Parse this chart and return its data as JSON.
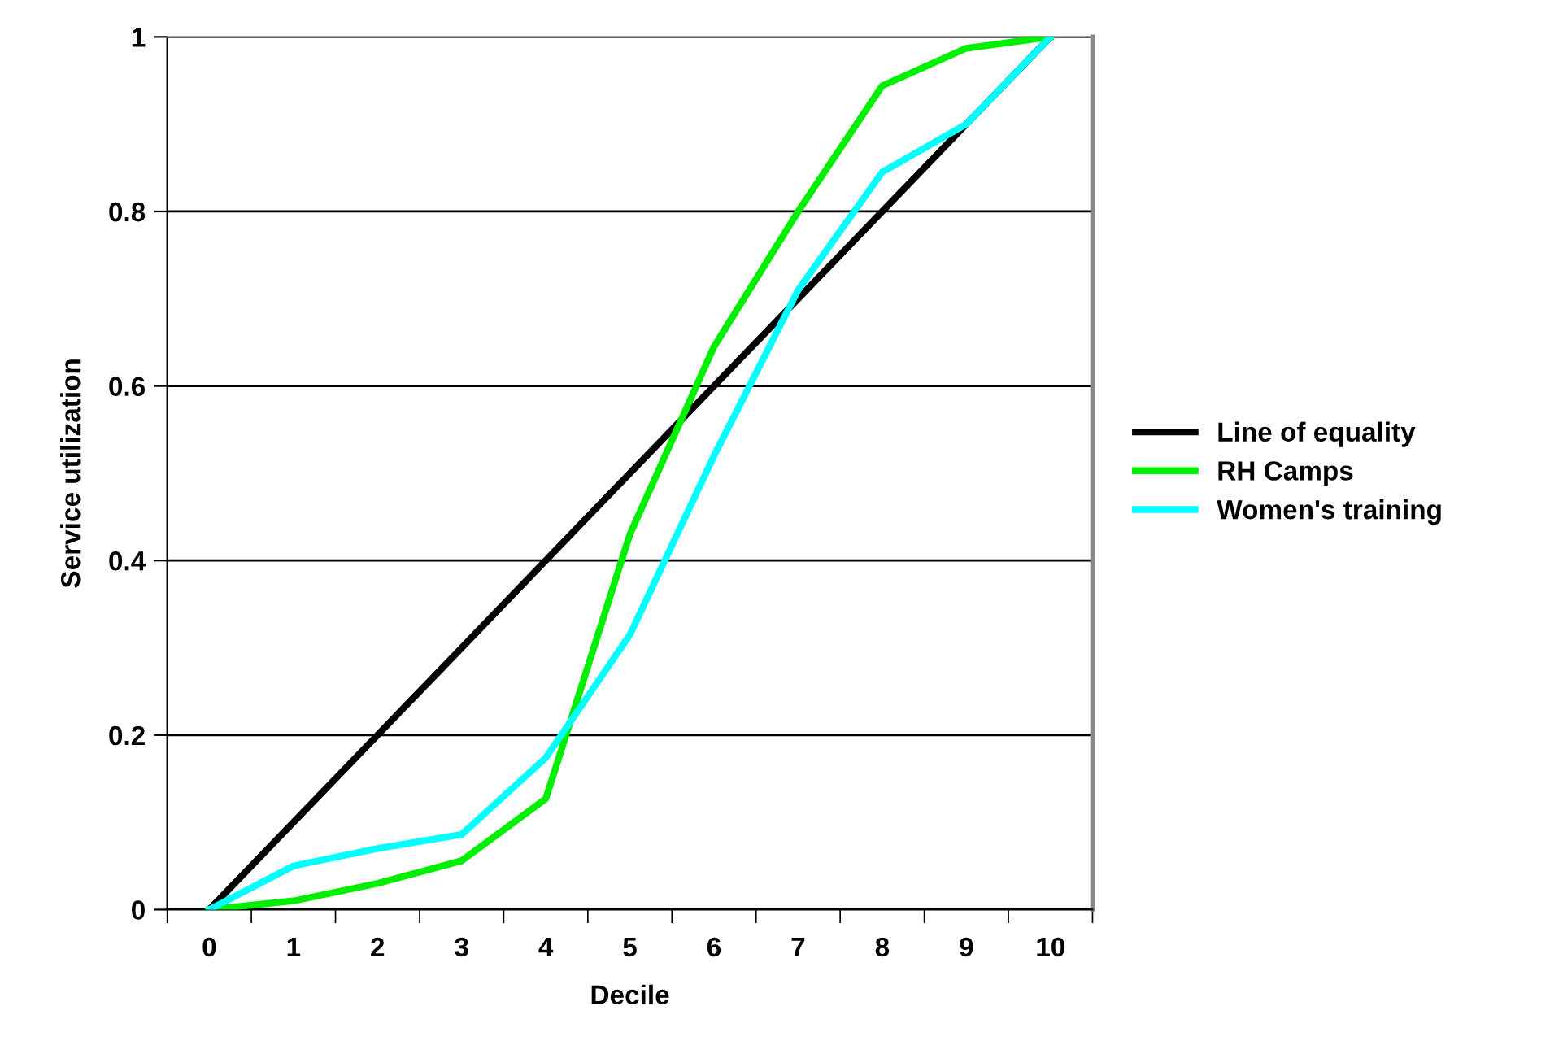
{
  "chart_data": {
    "type": "line",
    "xlabel": "Decile",
    "ylabel": "Service utilization",
    "categories": [
      "0",
      "1",
      "2",
      "3",
      "4",
      "5",
      "6",
      "7",
      "8",
      "9",
      "10"
    ],
    "series": [
      {
        "name": "Line of equality",
        "color": "#000000",
        "values": [
          0,
          0.1,
          0.2,
          0.3,
          0.4,
          0.5,
          0.6,
          0.7,
          0.8,
          0.9,
          1
        ]
      },
      {
        "name": "RH Camps",
        "color": "#00ee00",
        "values": [
          0,
          0.01,
          0.03,
          0.056,
          0.127,
          0.43,
          0.645,
          0.8,
          0.944,
          0.987,
          1
        ]
      },
      {
        "name": "Women's training",
        "color": "#00ffff",
        "values": [
          0,
          0.05,
          0.07,
          0.086,
          0.174,
          0.315,
          0.52,
          0.71,
          0.845,
          0.9,
          1
        ]
      }
    ],
    "ylim": [
      0,
      1
    ],
    "yticks": [
      0,
      {
        "value": 0.2,
        "label": "0.2"
      },
      {
        "value": 0.4,
        "label": "0.4"
      },
      {
        "value": 0.6,
        "label": "0.6"
      },
      {
        "value": 0.8,
        "label": "0.8"
      },
      1
    ],
    "grid": "y",
    "legend": "right",
    "marker": "none",
    "line_style": "solid"
  }
}
